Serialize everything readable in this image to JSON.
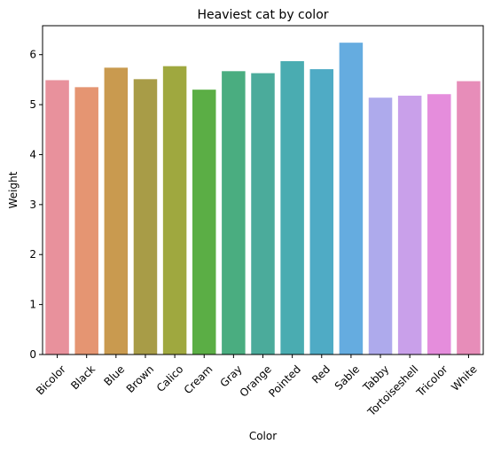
{
  "chart_data": {
    "type": "bar",
    "title": "Heaviest cat by color",
    "xlabel": "Color",
    "ylabel": "Weight",
    "ylim": [
      0,
      6.58
    ],
    "yticks": [
      0,
      1,
      2,
      3,
      4,
      5,
      6
    ],
    "grid": false,
    "categories": [
      "Bicolor",
      "Black",
      "Blue",
      "Brown",
      "Calico",
      "Cream",
      "Gray",
      "Orange",
      "Pointed",
      "Red",
      "Sable",
      "Tabby",
      "Tortoiseshell",
      "Tricolor",
      "White"
    ],
    "values": [
      5.49,
      5.35,
      5.74,
      5.51,
      5.77,
      5.3,
      5.67,
      5.63,
      5.87,
      5.71,
      6.24,
      5.14,
      5.18,
      5.21,
      5.47
    ],
    "colors": [
      "#e8919c",
      "#e59572",
      "#c99a4f",
      "#a89c47",
      "#9fa83f",
      "#5bae45",
      "#4aad80",
      "#4bab9b",
      "#4aacb1",
      "#4fabc5",
      "#65ace0",
      "#aeaaec",
      "#c9a0ea",
      "#e58ddc",
      "#e78db9"
    ]
  }
}
